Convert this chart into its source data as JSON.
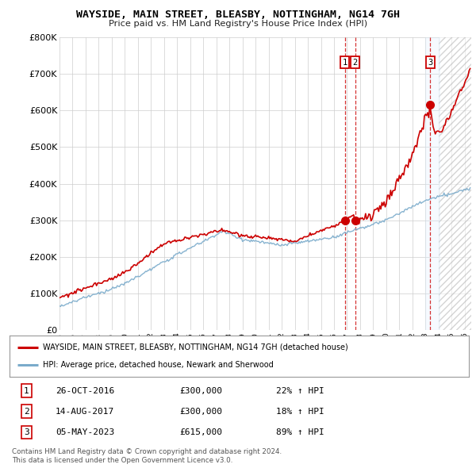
{
  "title": "WAYSIDE, MAIN STREET, BLEASBY, NOTTINGHAM, NG14 7GH",
  "subtitle": "Price paid vs. HM Land Registry's House Price Index (HPI)",
  "ylim": [
    0,
    800000
  ],
  "yticks": [
    0,
    100000,
    200000,
    300000,
    400000,
    500000,
    600000,
    700000,
    800000
  ],
  "ytick_labels": [
    "£0",
    "£100K",
    "£200K",
    "£300K",
    "£400K",
    "£500K",
    "£600K",
    "£700K",
    "£800K"
  ],
  "xlim_start": 1995.0,
  "xlim_end": 2026.5,
  "legend_label_red": "WAYSIDE, MAIN STREET, BLEASBY, NOTTINGHAM, NG14 7GH (detached house)",
  "legend_label_blue": "HPI: Average price, detached house, Newark and Sherwood",
  "sale1_date": 2016.82,
  "sale1_price": 300000,
  "sale2_date": 2017.62,
  "sale2_price": 300000,
  "sale3_date": 2023.35,
  "sale3_price": 615000,
  "hatch_start": 2024.0,
  "shade_start": 2023.0,
  "shade_end": 2024.1,
  "footer1": "Contains HM Land Registry data © Crown copyright and database right 2024.",
  "footer2": "This data is licensed under the Open Government Licence v3.0.",
  "red_color": "#cc0000",
  "blue_color": "#7aabcb",
  "vline_color": "#cc0000",
  "shade_color": "#ddeeff",
  "hatch_color": "#cccccc",
  "background_color": "#ffffff",
  "grid_color": "#cccccc"
}
